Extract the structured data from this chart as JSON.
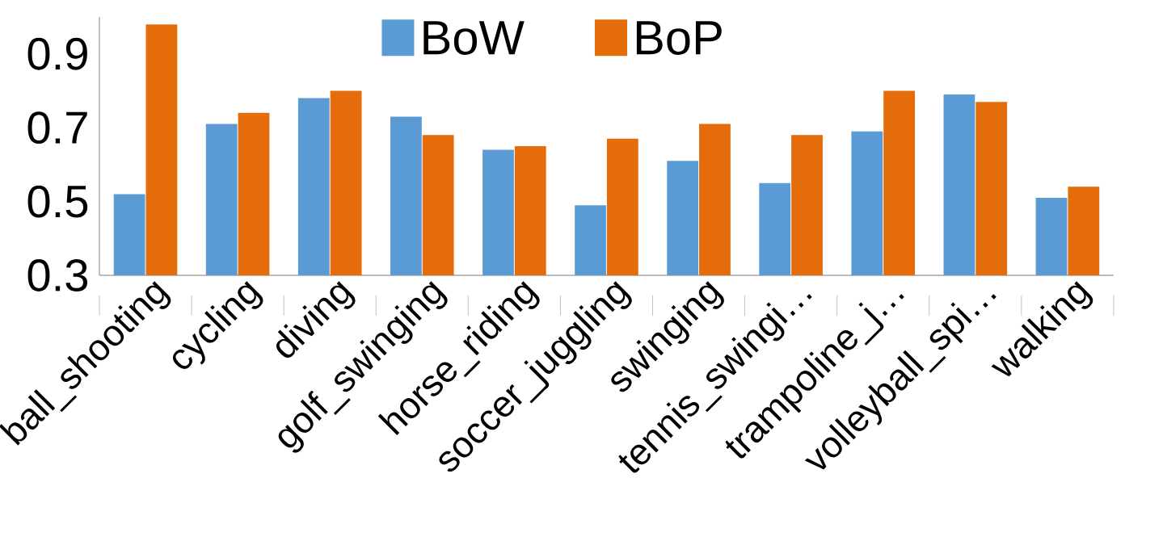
{
  "chart_data": {
    "type": "bar",
    "categories": [
      "ball_shooting",
      "cycling",
      "diving",
      "golf_swinging",
      "horse_riding",
      "soccer_juggling",
      "swinging",
      "tennis_swingi…",
      "trampoline_j…",
      "volleyball_spi…",
      "walking"
    ],
    "series": [
      {
        "name": "BoW",
        "color": "#5b9bd5",
        "values": [
          0.52,
          0.71,
          0.78,
          0.73,
          0.64,
          0.49,
          0.61,
          0.55,
          0.69,
          0.79,
          0.51
        ]
      },
      {
        "name": "BoP",
        "color": "#e46c0a",
        "values": [
          0.98,
          0.74,
          0.8,
          0.68,
          0.65,
          0.67,
          0.71,
          0.68,
          0.8,
          0.77,
          0.54
        ]
      }
    ],
    "ylim": [
      0.3,
      1.0
    ],
    "yticks": [
      0.3,
      0.5,
      0.7,
      0.9
    ],
    "grid": false,
    "legend": "top"
  }
}
